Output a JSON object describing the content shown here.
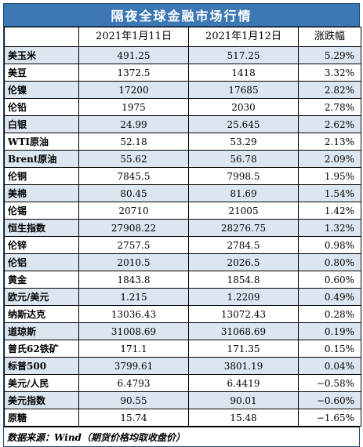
{
  "title": "隔夜全球金融市场行情",
  "columns": [
    "",
    "2021年1月11日",
    "2021年1月12日",
    "涨跌幅"
  ],
  "rows": [
    {
      "name": "美玉米",
      "d1": "491.25",
      "d2": "517.25",
      "chg": "5.29%"
    },
    {
      "name": "美豆",
      "d1": "1372.5",
      "d2": "1418",
      "chg": "3.32%"
    },
    {
      "name": "伦镍",
      "d1": "17200",
      "d2": "17685",
      "chg": "2.82%"
    },
    {
      "name": "伦铅",
      "d1": "1975",
      "d2": "2030",
      "chg": "2.78%"
    },
    {
      "name": "白银",
      "d1": "24.99",
      "d2": "25.645",
      "chg": "2.62%"
    },
    {
      "name": "WTI原油",
      "d1": "52.18",
      "d2": "53.29",
      "chg": "2.13%"
    },
    {
      "name": "Brent原油",
      "d1": "55.62",
      "d2": "56.78",
      "chg": "2.09%"
    },
    {
      "name": "伦铜",
      "d1": "7845.5",
      "d2": "7998.5",
      "chg": "1.95%"
    },
    {
      "name": "美棉",
      "d1": "80.45",
      "d2": "81.69",
      "chg": "1.54%"
    },
    {
      "name": "伦锡",
      "d1": "20710",
      "d2": "21005",
      "chg": "1.42%"
    },
    {
      "name": "恒生指数",
      "d1": "27908.22",
      "d2": "28276.75",
      "chg": "1.32%"
    },
    {
      "name": "伦锌",
      "d1": "2757.5",
      "d2": "2784.5",
      "chg": "0.98%"
    },
    {
      "name": "伦铝",
      "d1": "2010.5",
      "d2": "2026.5",
      "chg": "0.80%"
    },
    {
      "name": "黄金",
      "d1": "1843.8",
      "d2": "1854.8",
      "chg": "0.60%"
    },
    {
      "name": "欧元/美元",
      "d1": "1.215",
      "d2": "1.2209",
      "chg": "0.49%"
    },
    {
      "name": "纳斯达克",
      "d1": "13036.43",
      "d2": "13072.43",
      "chg": "0.28%"
    },
    {
      "name": "道琼斯",
      "d1": "31008.69",
      "d2": "31068.69",
      "chg": "0.19%"
    },
    {
      "name": "普氏62铁矿",
      "d1": "171.1",
      "d2": "171.35",
      "chg": "0.15%"
    },
    {
      "name": "标普500",
      "d1": "3799.61",
      "d2": "3801.19",
      "chg": "0.04%"
    },
    {
      "name": "美元/人民",
      "d1": "6.4793",
      "d2": "6.4419",
      "chg": "−0.58%"
    },
    {
      "name": "美元指数",
      "d1": "90.55",
      "d2": "90.01",
      "chg": "−0.60%"
    },
    {
      "name": "原糖",
      "d1": "15.74",
      "d2": "15.48",
      "chg": "−1.65%"
    }
  ],
  "source": "数据来源：Wind（期货价格均取收盘价）",
  "colors": {
    "title_bg": "#3c78b4",
    "row_shade": "#dce6f1",
    "row_plain": "#ffffff"
  }
}
